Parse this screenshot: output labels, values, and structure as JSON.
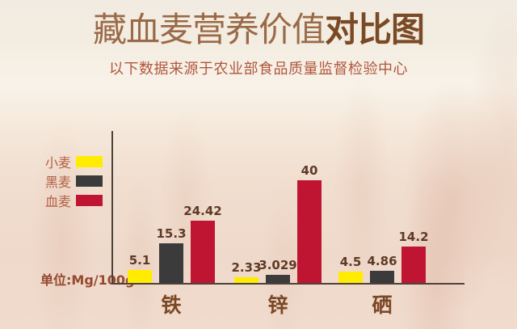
{
  "header": {
    "title_regular": "藏血麦营养价值",
    "title_bold": "对比图",
    "subtitle": "以下数据来源于农业部食品质量监督检验中心"
  },
  "unit_label": "单位:Mg/100g",
  "legend": {
    "items": [
      {
        "label": "小麦",
        "color": "#ffec00"
      },
      {
        "label": "黑麦",
        "color": "#3b3b3b"
      },
      {
        "label": "血麦",
        "color": "#c01532"
      }
    ]
  },
  "colors": {
    "title_regular": "#9a6a48",
    "title_bold": "#7a4a24",
    "subtitle": "#b1573e",
    "legend_text": "#b25f45",
    "unit_text": "#95492f",
    "category_label": "#7b4826",
    "value_label": "#5e3a26",
    "axis": "#4a433c",
    "background_top": "#f3ece1",
    "background_bottom": "#f0dbcd"
  },
  "chart_data": {
    "type": "bar",
    "title": "藏血麦营养价值对比图",
    "subtitle": "以下数据来源于农业部食品质量监督检验中心",
    "categories": [
      "铁",
      "锌",
      "硒"
    ],
    "series": [
      {
        "name": "小麦",
        "color": "#ffec00",
        "values": [
          5.1,
          2.33,
          4.5
        ]
      },
      {
        "name": "黑麦",
        "color": "#3b3b3b",
        "values": [
          15.3,
          3.029,
          4.86
        ]
      },
      {
        "name": "血麦",
        "color": "#c01532",
        "values": [
          24.42,
          40,
          14.2
        ]
      }
    ],
    "xlabel": "",
    "ylabel": "单位:Mg/100g",
    "ylim": [
      0,
      40
    ],
    "grid": false,
    "legend_position": "left",
    "value_labels_shown": true
  }
}
